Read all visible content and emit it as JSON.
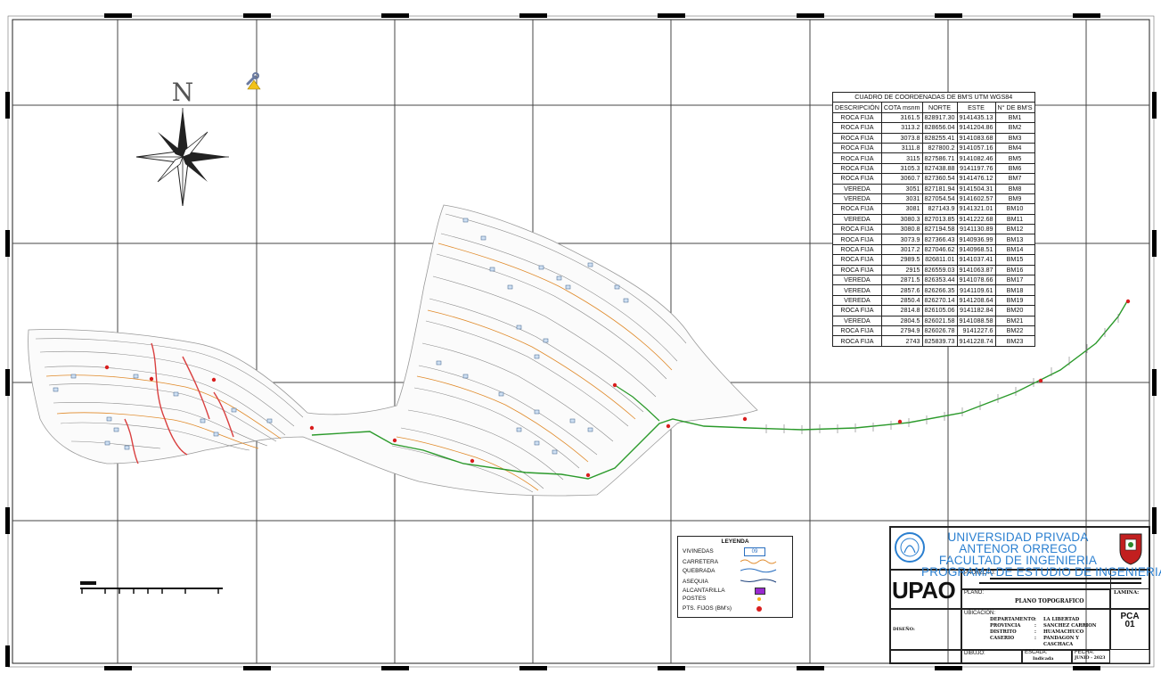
{
  "north_label": "N",
  "bm_table": {
    "title": "CUADRO DE COORDENADAS DE BM'S UTM WGS84",
    "headers": [
      "DESCRIPCIÓN",
      "COTA msnm",
      "NORTE",
      "ESTE",
      "N° DE BM'S"
    ],
    "rows": [
      [
        "ROCA FIJA",
        "3161.5",
        "828917.30",
        "9141435.13",
        "BM1"
      ],
      [
        "ROCA FIJA",
        "3113.2",
        "828656.04",
        "9141204.86",
        "BM2"
      ],
      [
        "ROCA FIJA",
        "3073.8",
        "828255.41",
        "9141083.68",
        "BM3"
      ],
      [
        "ROCA FIJA",
        "3111.8",
        "827800.2",
        "9141057.16",
        "BM4"
      ],
      [
        "ROCA FIJA",
        "3115",
        "827586.71",
        "9141082.46",
        "BM5"
      ],
      [
        "ROCA FIJA",
        "3105.3",
        "827438.88",
        "9141197.76",
        "BM6"
      ],
      [
        "ROCA FIJA",
        "3060.7",
        "827360.54",
        "9141476.12",
        "BM7"
      ],
      [
        "VEREDA",
        "3051",
        "827181.94",
        "9141504.31",
        "BM8"
      ],
      [
        "VEREDA",
        "3031",
        "827054.54",
        "9141602.57",
        "BM9"
      ],
      [
        "ROCA FIJA",
        "3081",
        "827143.9",
        "9141321.01",
        "BM10"
      ],
      [
        "VEREDA",
        "3080.3",
        "827013.85",
        "9141222.68",
        "BM11"
      ],
      [
        "ROCA FIJA",
        "3080.8",
        "827194.58",
        "9141130.89",
        "BM12"
      ],
      [
        "ROCA FIJA",
        "3073.9",
        "827366.43",
        "9140936.99",
        "BM13"
      ],
      [
        "ROCA FIJA",
        "3017.2",
        "827046.62",
        "9140968.51",
        "BM14"
      ],
      [
        "ROCA FIJA",
        "2989.5",
        "826811.01",
        "9141037.41",
        "BM15"
      ],
      [
        "ROCA FIJA",
        "2915",
        "826559.03",
        "9141063.87",
        "BM16"
      ],
      [
        "VEREDA",
        "2871.5",
        "826353.44",
        "9141078.66",
        "BM17"
      ],
      [
        "VEREDA",
        "2857.6",
        "826266.35",
        "9141109.61",
        "BM18"
      ],
      [
        "VEREDA",
        "2850.4",
        "826270.14",
        "9141208.64",
        "BM19"
      ],
      [
        "ROCA FIJA",
        "2814.8",
        "826105.06",
        "9141182.84",
        "BM20"
      ],
      [
        "VEREDA",
        "2804.5",
        "826021.58",
        "9141088.58",
        "BM21"
      ],
      [
        "ROCA FIJA",
        "2794.9",
        "826026.78",
        "9141227.6",
        "BM22"
      ],
      [
        "ROCA FIJA",
        "2743",
        "825839.73",
        "9141228.74",
        "BM23"
      ]
    ]
  },
  "legend": {
    "title": "LEYENDA",
    "items": [
      {
        "label": "VIVINEDAS",
        "symbol": "box-09",
        "box_text": "09"
      },
      {
        "label": "CARRETERA",
        "symbol": "wavy-orange"
      },
      {
        "label": "QUEBRADA",
        "symbol": "wavy-blue"
      },
      {
        "label": "ASEQUIA",
        "symbol": "wavy-blue-dark"
      },
      {
        "label": "ALCANTARILLA",
        "symbol": "purple-box"
      },
      {
        "label": "POSTES",
        "symbol": "yellow-dot"
      },
      {
        "label": "PTS. FIJOS (BM's)",
        "symbol": "red-dot"
      }
    ]
  },
  "title_block": {
    "university_lines": [
      "UNIVERSIDAD PRIVADA ANTENOR ORREGO",
      "FACULTAD DE INGENIERIA",
      "PROGRAMA DE ESTUDIO DE INGENIERIA CIVIL"
    ],
    "logo_text": "UPAO",
    "proyecto_label": "PROYECTO:",
    "plano_label": "PLANO:",
    "plano_value": "PLANO TOPOGRAFICO",
    "lamina_label": "LAMINA:",
    "lamina_code": "PCA",
    "lamina_number": "01",
    "ubicacion_label": "UBICACION:",
    "ubicacion_rows": [
      [
        "DEPARTAMENTO",
        ":",
        "LA LIBERTAD"
      ],
      [
        "PROVINCIA",
        ":",
        "SANCHEZ CARRION"
      ],
      [
        "DISTRITO",
        ":",
        "HUAMACHUCO"
      ],
      [
        "CASERIO",
        ":",
        "PANDAGON Y CASCHACA"
      ]
    ],
    "diseno_label": "DISEÑO:",
    "dibujo_label": "DIBUJO:",
    "escala_label": "ESCALA:",
    "escala_value": "Indicada",
    "fecha_label": "FECHA:",
    "fecha_value": "JUNIO - 2023"
  },
  "colors": {
    "contour": "#8a8a8a",
    "contour_index": "#e08a2a",
    "road": "#2b9a2b",
    "creek": "#d94040",
    "university_text": "#2a7fd0",
    "lot_box": "#6fa3d8"
  }
}
